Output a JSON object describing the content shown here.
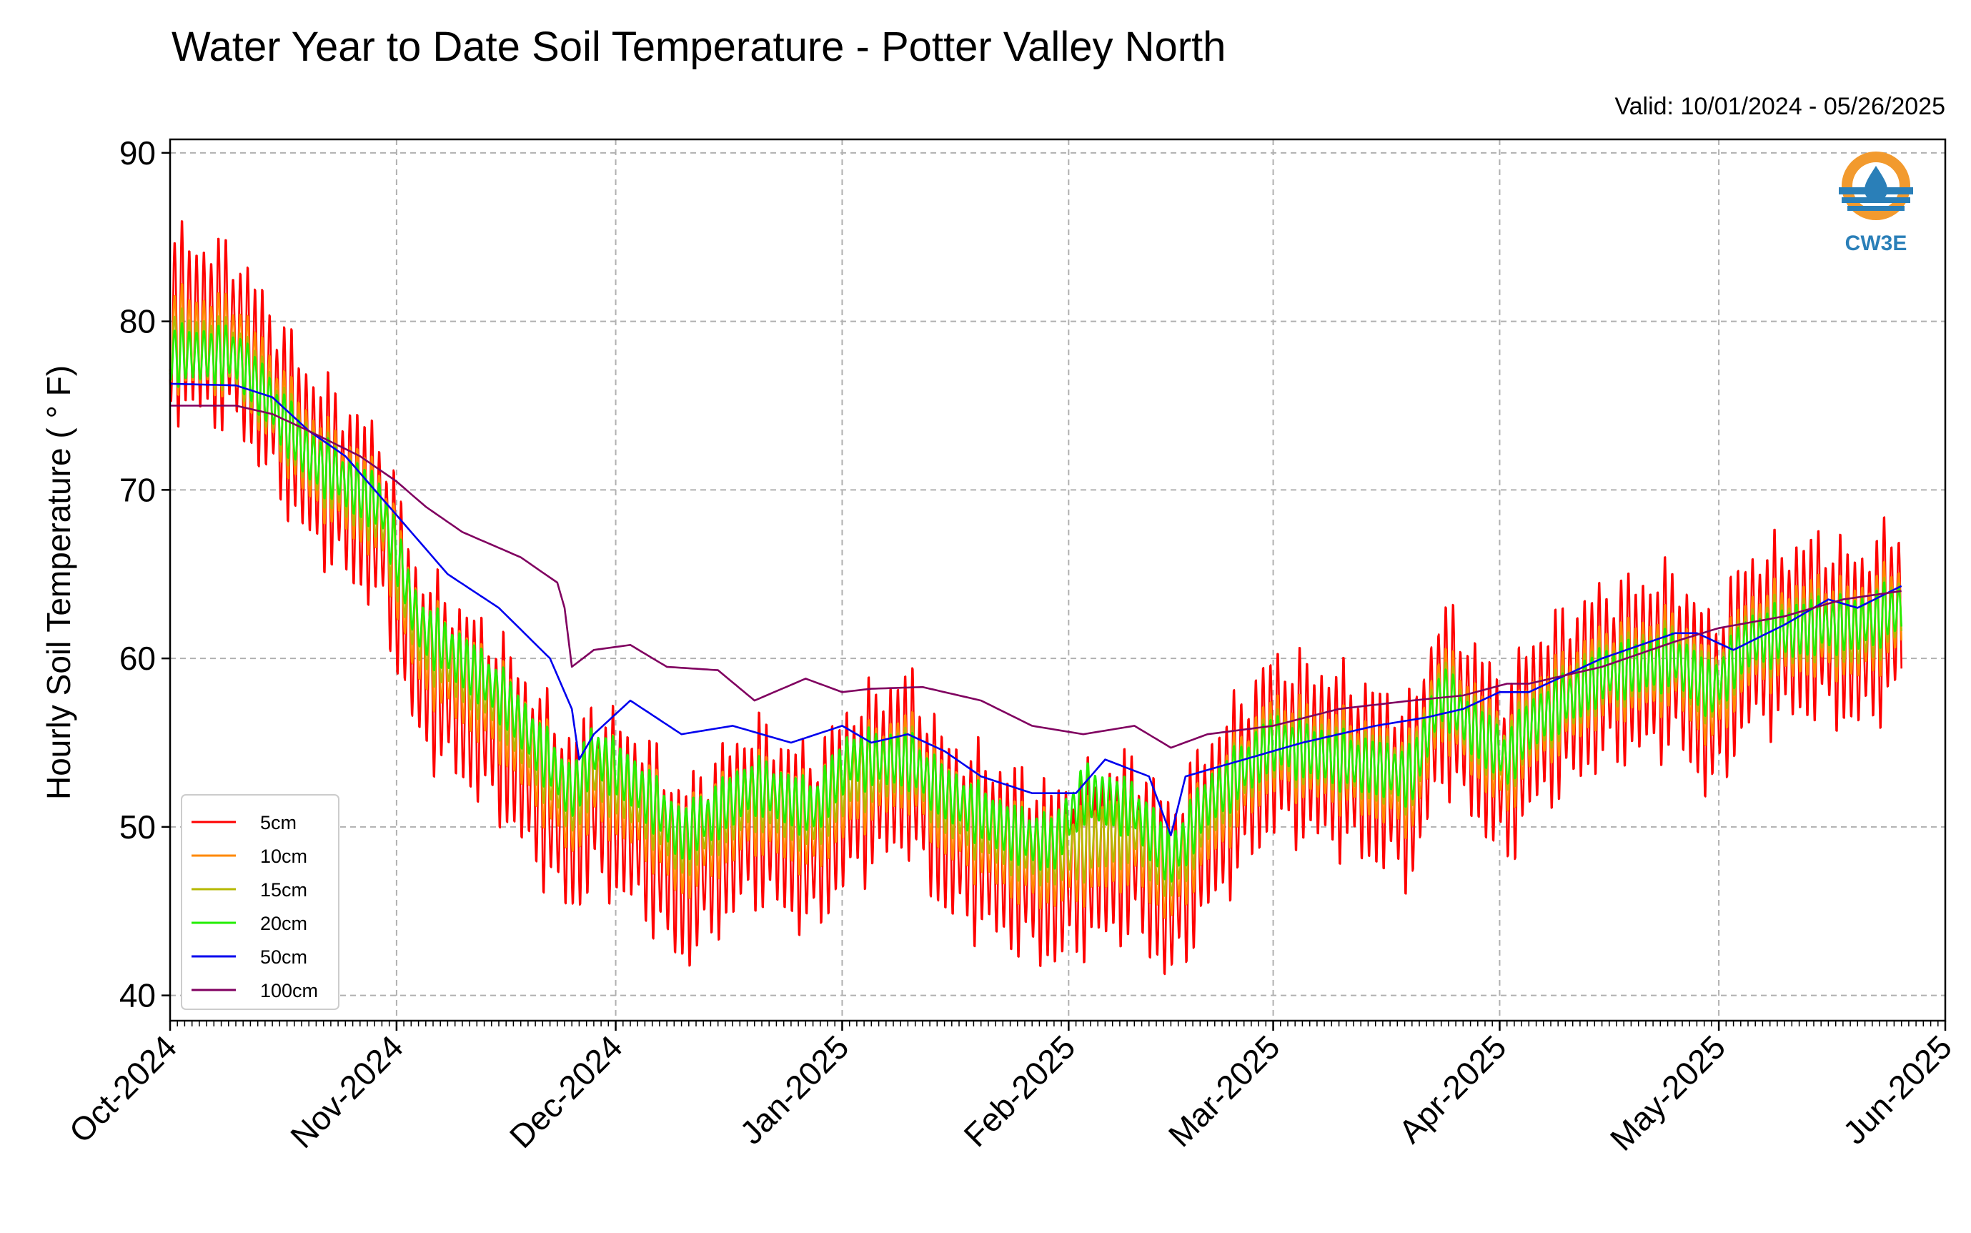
{
  "chart_data": {
    "type": "line",
    "title": "Water Year to Date Soil Temperature - Potter Valley North",
    "subtitle": "Valid: 10/01/2024 - 05/26/2025",
    "ylabel": "Hourly Soil Temperature ( ° F)",
    "xlabel": "",
    "x_range": [
      "2024-10-01",
      "2025-06-01"
    ],
    "ylim": [
      38.5,
      90.8
    ],
    "y_ticks": [
      40,
      50,
      60,
      70,
      80,
      90
    ],
    "x_ticks": [
      {
        "date": "2024-10-01",
        "label": "Oct-2024"
      },
      {
        "date": "2024-11-01",
        "label": "Nov-2024"
      },
      {
        "date": "2024-12-01",
        "label": "Dec-2024"
      },
      {
        "date": "2025-01-01",
        "label": "Jan-2025"
      },
      {
        "date": "2025-02-01",
        "label": "Feb-2025"
      },
      {
        "date": "2025-03-01",
        "label": "Mar-2025"
      },
      {
        "date": "2025-04-01",
        "label": "Apr-2025"
      },
      {
        "date": "2025-05-01",
        "label": "May-2025"
      },
      {
        "date": "2025-06-01",
        "label": "Jun-2025"
      }
    ],
    "grid": true,
    "legend_position": "lower-left",
    "logo_label": "CW3E",
    "series": [
      {
        "name": "5cm",
        "color": "#ff0000",
        "daily_amplitude": 13,
        "points": [
          [
            "2024-10-01",
            80
          ],
          [
            "2024-10-10",
            79
          ],
          [
            "2024-10-20",
            72
          ],
          [
            "2024-10-30",
            68
          ],
          [
            "2024-11-04",
            60
          ],
          [
            "2024-11-15",
            56
          ],
          [
            "2024-11-25",
            50
          ],
          [
            "2024-11-28",
            52
          ],
          [
            "2024-12-05",
            50
          ],
          [
            "2024-12-10",
            47
          ],
          [
            "2024-12-20",
            51
          ],
          [
            "2024-12-28",
            49
          ],
          [
            "2025-01-02",
            52
          ],
          [
            "2025-01-10",
            54
          ],
          [
            "2025-01-15",
            50
          ],
          [
            "2025-01-25",
            48
          ],
          [
            "2025-01-30",
            47
          ],
          [
            "2025-02-03",
            48
          ],
          [
            "2025-02-10",
            49
          ],
          [
            "2025-02-15",
            46
          ],
          [
            "2025-02-20",
            50
          ],
          [
            "2025-03-01",
            55
          ],
          [
            "2025-03-10",
            54
          ],
          [
            "2025-03-20",
            52
          ],
          [
            "2025-03-24",
            58
          ],
          [
            "2025-03-28",
            56
          ],
          [
            "2025-04-02",
            53
          ],
          [
            "2025-04-05",
            56
          ],
          [
            "2025-04-15",
            59
          ],
          [
            "2025-04-25",
            60
          ],
          [
            "2025-04-30",
            57
          ],
          [
            "2025-05-05",
            61
          ],
          [
            "2025-05-15",
            62
          ],
          [
            "2025-05-20",
            61
          ],
          [
            "2025-05-26",
            63
          ]
        ]
      },
      {
        "name": "10cm",
        "color": "#ff8800",
        "daily_amplitude": 7,
        "points": [
          [
            "2024-10-01",
            79
          ],
          [
            "2024-10-10",
            78.5
          ],
          [
            "2024-10-20",
            72
          ],
          [
            "2024-10-30",
            68.5
          ],
          [
            "2024-11-04",
            61
          ],
          [
            "2024-11-15",
            57
          ],
          [
            "2024-11-25",
            51
          ],
          [
            "2024-11-28",
            53
          ],
          [
            "2024-12-05",
            51
          ],
          [
            "2024-12-10",
            48.5
          ],
          [
            "2024-12-20",
            51.5
          ],
          [
            "2024-12-28",
            50
          ],
          [
            "2025-01-02",
            52.5
          ],
          [
            "2025-01-10",
            54
          ],
          [
            "2025-01-15",
            51
          ],
          [
            "2025-01-25",
            48.5
          ],
          [
            "2025-01-30",
            48
          ],
          [
            "2025-02-03",
            48.5
          ],
          [
            "2025-02-10",
            49.5
          ],
          [
            "2025-02-15",
            47
          ],
          [
            "2025-02-20",
            50.5
          ],
          [
            "2025-03-01",
            55
          ],
          [
            "2025-03-10",
            54
          ],
          [
            "2025-03-20",
            52.5
          ],
          [
            "2025-03-24",
            58
          ],
          [
            "2025-03-28",
            56
          ],
          [
            "2025-04-02",
            53.5
          ],
          [
            "2025-04-05",
            56
          ],
          [
            "2025-04-15",
            59
          ],
          [
            "2025-04-25",
            60
          ],
          [
            "2025-04-30",
            57.5
          ],
          [
            "2025-05-05",
            61
          ],
          [
            "2025-05-15",
            62
          ],
          [
            "2025-05-20",
            61.5
          ],
          [
            "2025-05-26",
            63
          ]
        ]
      },
      {
        "name": "15cm",
        "color": "#b5b800",
        "daily_amplitude": 5,
        "points": [
          [
            "2024-10-01",
            78.5
          ],
          [
            "2024-10-10",
            78
          ],
          [
            "2024-10-20",
            72
          ],
          [
            "2024-10-30",
            68.5
          ],
          [
            "2024-11-04",
            61.5
          ],
          [
            "2024-11-15",
            57.5
          ],
          [
            "2024-11-25",
            51.5
          ],
          [
            "2024-11-28",
            53.5
          ],
          [
            "2024-12-05",
            51.5
          ],
          [
            "2024-12-10",
            49
          ],
          [
            "2024-12-20",
            52
          ],
          [
            "2024-12-28",
            50.5
          ],
          [
            "2025-01-02",
            53
          ],
          [
            "2025-01-10",
            54
          ],
          [
            "2025-01-15",
            51.5
          ],
          [
            "2025-01-25",
            49
          ],
          [
            "2025-01-30",
            48.5
          ],
          [
            "2025-02-03",
            49
          ],
          [
            "2025-02-10",
            50
          ],
          [
            "2025-02-15",
            47.5
          ],
          [
            "2025-02-20",
            51
          ],
          [
            "2025-03-01",
            55
          ],
          [
            "2025-03-10",
            54
          ],
          [
            "2025-03-20",
            53
          ],
          [
            "2025-03-24",
            58
          ],
          [
            "2025-03-28",
            56
          ],
          [
            "2025-04-02",
            54
          ],
          [
            "2025-04-05",
            56
          ],
          [
            "2025-04-15",
            59
          ],
          [
            "2025-04-25",
            60
          ],
          [
            "2025-04-30",
            58
          ],
          [
            "2025-05-05",
            61
          ],
          [
            "2025-05-15",
            62
          ],
          [
            "2025-05-20",
            61.5
          ],
          [
            "2025-05-26",
            63
          ]
        ]
      },
      {
        "name": "20cm",
        "color": "#22ee00",
        "daily_amplitude": 4,
        "points": [
          [
            "2024-10-01",
            78
          ],
          [
            "2024-10-10",
            78
          ],
          [
            "2024-10-20",
            72
          ],
          [
            "2024-10-30",
            69
          ],
          [
            "2024-11-04",
            62
          ],
          [
            "2024-11-15",
            58
          ],
          [
            "2024-11-25",
            52
          ],
          [
            "2024-11-28",
            54.5
          ],
          [
            "2024-12-05",
            52
          ],
          [
            "2024-12-10",
            49.5
          ],
          [
            "2024-12-20",
            52.5
          ],
          [
            "2024-12-28",
            51
          ],
          [
            "2025-01-02",
            54
          ],
          [
            "2025-01-10",
            54
          ],
          [
            "2025-01-15",
            52
          ],
          [
            "2025-01-25",
            49.5
          ],
          [
            "2025-01-30",
            49
          ],
          [
            "2025-02-03",
            52
          ],
          [
            "2025-02-10",
            51
          ],
          [
            "2025-02-15",
            48
          ],
          [
            "2025-02-20",
            51.5
          ],
          [
            "2025-03-01",
            55
          ],
          [
            "2025-03-10",
            54
          ],
          [
            "2025-03-20",
            53
          ],
          [
            "2025-03-24",
            58
          ],
          [
            "2025-03-28",
            56
          ],
          [
            "2025-04-02",
            54
          ],
          [
            "2025-04-05",
            56
          ],
          [
            "2025-04-15",
            59
          ],
          [
            "2025-04-25",
            60
          ],
          [
            "2025-04-30",
            58
          ],
          [
            "2025-05-05",
            61
          ],
          [
            "2025-05-15",
            62
          ],
          [
            "2025-05-20",
            62
          ],
          [
            "2025-05-26",
            63
          ]
        ]
      },
      {
        "name": "50cm",
        "color": "#0000ee",
        "daily_amplitude": 0,
        "points": [
          [
            "2024-10-01",
            76.3
          ],
          [
            "2024-10-10",
            76.2
          ],
          [
            "2024-10-15",
            75.5
          ],
          [
            "2024-10-20",
            73.5
          ],
          [
            "2024-10-25",
            72
          ],
          [
            "2024-10-30",
            69.5
          ],
          [
            "2024-11-03",
            67.5
          ],
          [
            "2024-11-08",
            65
          ],
          [
            "2024-11-15",
            63
          ],
          [
            "2024-11-22",
            60
          ],
          [
            "2024-11-25",
            57
          ],
          [
            "2024-11-26",
            54
          ],
          [
            "2024-11-28",
            55.5
          ],
          [
            "2024-12-03",
            57.5
          ],
          [
            "2024-12-10",
            55.5
          ],
          [
            "2024-12-17",
            56
          ],
          [
            "2024-12-25",
            55
          ],
          [
            "2025-01-01",
            56
          ],
          [
            "2025-01-05",
            55
          ],
          [
            "2025-01-10",
            55.5
          ],
          [
            "2025-01-15",
            54.5
          ],
          [
            "2025-01-20",
            53
          ],
          [
            "2025-01-27",
            52
          ],
          [
            "2025-02-02",
            52
          ],
          [
            "2025-02-06",
            54
          ],
          [
            "2025-02-12",
            53
          ],
          [
            "2025-02-15",
            49.5
          ],
          [
            "2025-02-17",
            53
          ],
          [
            "2025-02-25",
            54
          ],
          [
            "2025-03-05",
            55
          ],
          [
            "2025-03-15",
            56
          ],
          [
            "2025-03-22",
            56.5
          ],
          [
            "2025-03-27",
            57
          ],
          [
            "2025-04-01",
            58
          ],
          [
            "2025-04-05",
            58
          ],
          [
            "2025-04-15",
            60
          ],
          [
            "2025-04-25",
            61.5
          ],
          [
            "2025-04-28",
            61.5
          ],
          [
            "2025-05-03",
            60.5
          ],
          [
            "2025-05-10",
            62
          ],
          [
            "2025-05-16",
            63.5
          ],
          [
            "2025-05-20",
            63
          ],
          [
            "2025-05-26",
            64.3
          ]
        ]
      },
      {
        "name": "100cm",
        "color": "#800060",
        "daily_amplitude": 0,
        "points": [
          [
            "2024-10-01",
            75
          ],
          [
            "2024-10-10",
            75
          ],
          [
            "2024-10-15",
            74.5
          ],
          [
            "2024-10-20",
            73.5
          ],
          [
            "2024-10-27",
            72
          ],
          [
            "2024-11-01",
            70.5
          ],
          [
            "2024-11-05",
            69
          ],
          [
            "2024-11-10",
            67.5
          ],
          [
            "2024-11-18",
            66
          ],
          [
            "2024-11-23",
            64.5
          ],
          [
            "2024-11-24",
            63
          ],
          [
            "2024-11-25",
            59.5
          ],
          [
            "2024-11-28",
            60.5
          ],
          [
            "2024-12-03",
            60.8
          ],
          [
            "2024-12-08",
            59.5
          ],
          [
            "2024-12-15",
            59.3
          ],
          [
            "2024-12-20",
            57.5
          ],
          [
            "2024-12-27",
            58.8
          ],
          [
            "2025-01-01",
            58
          ],
          [
            "2025-01-05",
            58.2
          ],
          [
            "2025-01-12",
            58.3
          ],
          [
            "2025-01-20",
            57.5
          ],
          [
            "2025-01-27",
            56
          ],
          [
            "2025-02-03",
            55.5
          ],
          [
            "2025-02-10",
            56
          ],
          [
            "2025-02-15",
            54.7
          ],
          [
            "2025-02-20",
            55.5
          ],
          [
            "2025-03-01",
            56
          ],
          [
            "2025-03-10",
            57
          ],
          [
            "2025-03-20",
            57.5
          ],
          [
            "2025-03-27",
            57.8
          ],
          [
            "2025-04-02",
            58.5
          ],
          [
            "2025-04-05",
            58.5
          ],
          [
            "2025-04-15",
            59.5
          ],
          [
            "2025-04-25",
            61
          ],
          [
            "2025-05-01",
            61.8
          ],
          [
            "2025-05-10",
            62.5
          ],
          [
            "2025-05-18",
            63.5
          ],
          [
            "2025-05-26",
            64
          ]
        ]
      }
    ]
  }
}
